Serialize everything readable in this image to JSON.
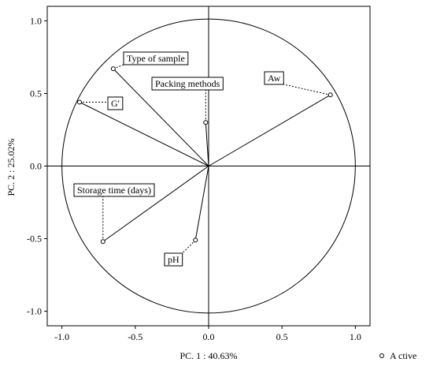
{
  "chart_data": {
    "type": "scatter",
    "subtype": "pca-correlation-circle",
    "xlabel": "PC. 1 : 40.63%",
    "ylabel": "PC. 2 : 25.02%",
    "xlim": [
      -1.1,
      1.1
    ],
    "ylim": [
      -1.1,
      1.1
    ],
    "x_ticks": [
      "-1.0",
      "-0.5",
      "0.0",
      "0.5",
      "1.0"
    ],
    "y_ticks": [
      "-1.0",
      "-0.5",
      "0.0",
      "0.5",
      "1.0"
    ],
    "unit_circle": true,
    "grid": false,
    "legend": {
      "position": "bottom-right",
      "entries": [
        "A ctive"
      ]
    },
    "points": [
      {
        "label": "Type of sample",
        "x": -0.65,
        "y": 0.67
      },
      {
        "label": "G'",
        "x": -0.88,
        "y": 0.44
      },
      {
        "label": "Packing methods",
        "x": -0.02,
        "y": 0.3
      },
      {
        "label": "Aw",
        "x": 0.83,
        "y": 0.49
      },
      {
        "label": "Storage time (days)",
        "x": -0.72,
        "y": -0.52
      },
      {
        "label": "pH",
        "x": -0.09,
        "y": -0.51
      }
    ]
  }
}
